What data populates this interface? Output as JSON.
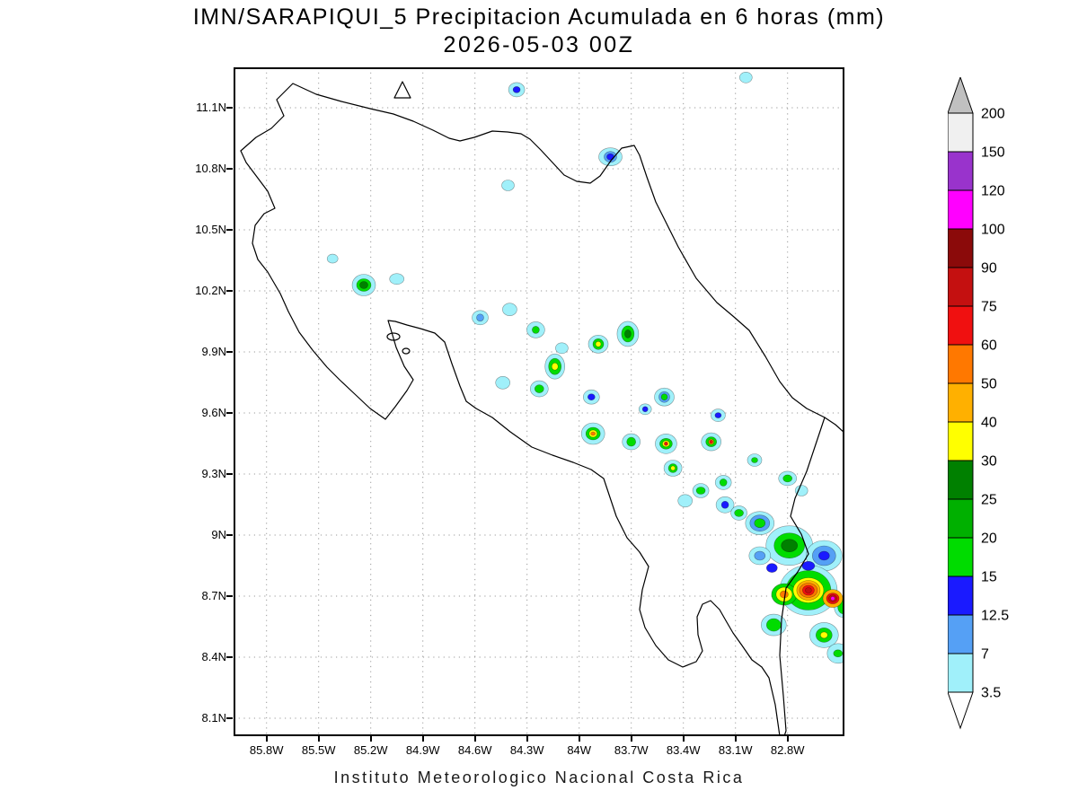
{
  "title": {
    "line1": "IMN/SARAPIQUI_5 Precipitacion Acumulada en 6 horas (mm)",
    "line2": "2026-05-03 00Z"
  },
  "footer": {
    "text": "Instituto Meteorologico Nacional Costa Rica"
  },
  "axes": {
    "y_ticks": [
      "11.1N",
      "10.8N",
      "10.5N",
      "10.2N",
      "9.9N",
      "9.6N",
      "9.3N",
      "9N",
      "8.7N",
      "8.4N",
      "8.1N"
    ],
    "x_ticks": [
      "85.8W",
      "85.5W",
      "85.2W",
      "84.9W",
      "84.6W",
      "84.3W",
      "84W",
      "83.7W",
      "83.4W",
      "83.1W",
      "82.8W"
    ]
  },
  "colorbar": {
    "labels_top_to_bottom": [
      "200",
      "150",
      "120",
      "100",
      "90",
      "75",
      "60",
      "50",
      "40",
      "30",
      "25",
      "20",
      "15",
      "12.5",
      "7",
      "3.5"
    ]
  },
  "chart_data": {
    "type": "heatmap",
    "title": "IMN/SARAPIQUI_5 Precipitacion Acumulada en 6 horas (mm)",
    "valid_time": "2026-05-03 00Z",
    "units": "mm",
    "region": "Costa Rica",
    "lon_w_range": [
      85.99,
      82.47
    ],
    "lat_n_range": [
      8.0,
      11.29
    ],
    "grid": "dotted",
    "legend_position": "right",
    "levels": [
      3.5,
      7,
      12.5,
      15,
      20,
      25,
      30,
      40,
      50,
      60,
      75,
      90,
      100,
      120,
      150,
      200
    ],
    "band_colors": [
      "#a0f0fa",
      "#55a0f5",
      "#1a1aff",
      "#00dc00",
      "#00b000",
      "#008000",
      "#ffff00",
      "#ffb000",
      "#ff7800",
      "#f01010",
      "#c41010",
      "#8b0a0a",
      "#ff00ff",
      "#9933cc",
      "#f0f0f0"
    ],
    "under_color": "#ffffff",
    "over_color": "#c0c0c0",
    "cells": [
      {
        "lon": 84.36,
        "lat": 11.18,
        "rings": [
          [
            3.5,
            9,
            8
          ],
          [
            12.5,
            4,
            3.5
          ]
        ]
      },
      {
        "lon": 83.04,
        "lat": 11.24,
        "rings": [
          [
            3.5,
            7,
            6
          ]
        ]
      },
      {
        "lon": 83.82,
        "lat": 10.85,
        "rings": [
          [
            3.5,
            13,
            10
          ],
          [
            7,
            7,
            6
          ],
          [
            12.5,
            4,
            3.5
          ]
        ]
      },
      {
        "lon": 84.41,
        "lat": 10.71,
        "rings": [
          [
            3.5,
            7,
            6
          ]
        ]
      },
      {
        "lon": 85.42,
        "lat": 10.35,
        "rings": [
          [
            3.5,
            6,
            5
          ]
        ]
      },
      {
        "lon": 85.24,
        "lat": 10.22,
        "rings": [
          [
            3.5,
            13,
            12
          ],
          [
            15,
            8,
            7
          ],
          [
            25,
            4.5,
            4
          ]
        ]
      },
      {
        "lon": 85.05,
        "lat": 10.25,
        "rings": [
          [
            3.5,
            8,
            6
          ]
        ]
      },
      {
        "lon": 84.57,
        "lat": 10.06,
        "rings": [
          [
            3.5,
            9,
            8
          ],
          [
            7,
            4,
            4
          ]
        ]
      },
      {
        "lon": 84.4,
        "lat": 10.1,
        "rings": [
          [
            3.5,
            8,
            7
          ]
        ]
      },
      {
        "lon": 84.25,
        "lat": 10.0,
        "rings": [
          [
            3.5,
            10,
            9
          ],
          [
            15,
            4,
            4
          ]
        ]
      },
      {
        "lon": 84.1,
        "lat": 9.91,
        "rings": [
          [
            3.5,
            7,
            6
          ]
        ]
      },
      {
        "lon": 83.72,
        "lat": 9.98,
        "rings": [
          [
            3.5,
            12,
            14
          ],
          [
            15,
            7,
            9
          ],
          [
            25,
            3.5,
            4.5
          ]
        ]
      },
      {
        "lon": 83.89,
        "lat": 9.93,
        "rings": [
          [
            3.5,
            11,
            10
          ],
          [
            15,
            6,
            6
          ],
          [
            30,
            3,
            3
          ]
        ]
      },
      {
        "lon": 84.14,
        "lat": 9.82,
        "rings": [
          [
            3.5,
            11,
            14
          ],
          [
            15,
            7,
            9
          ],
          [
            30,
            3.5,
            4
          ]
        ]
      },
      {
        "lon": 84.23,
        "lat": 9.71,
        "rings": [
          [
            3.5,
            10,
            9
          ],
          [
            15,
            5,
            4.5
          ]
        ]
      },
      {
        "lon": 84.44,
        "lat": 9.74,
        "rings": [
          [
            3.5,
            8,
            7
          ]
        ]
      },
      {
        "lon": 83.93,
        "lat": 9.67,
        "rings": [
          [
            3.5,
            9,
            8
          ],
          [
            12.5,
            4,
            3.5
          ]
        ]
      },
      {
        "lon": 83.51,
        "lat": 9.67,
        "rings": [
          [
            3.5,
            11,
            10
          ],
          [
            7,
            6,
            6
          ],
          [
            15,
            3.5,
            3.5
          ]
        ]
      },
      {
        "lon": 83.62,
        "lat": 9.61,
        "rings": [
          [
            3.5,
            7,
            6
          ],
          [
            12.5,
            3,
            3
          ]
        ]
      },
      {
        "lon": 83.92,
        "lat": 9.49,
        "rings": [
          [
            3.5,
            13,
            12
          ],
          [
            15,
            8,
            7
          ],
          [
            30,
            4.5,
            4
          ],
          [
            50,
            2.5,
            2
          ]
        ]
      },
      {
        "lon": 83.7,
        "lat": 9.45,
        "rings": [
          [
            3.5,
            10,
            9
          ],
          [
            15,
            5,
            5
          ]
        ]
      },
      {
        "lon": 83.5,
        "lat": 9.44,
        "rings": [
          [
            3.5,
            12,
            11
          ],
          [
            15,
            7,
            6
          ],
          [
            30,
            4,
            3.5
          ],
          [
            60,
            2,
            2
          ]
        ]
      },
      {
        "lon": 83.24,
        "lat": 9.45,
        "rings": [
          [
            3.5,
            11,
            10
          ],
          [
            15,
            6,
            5.5
          ],
          [
            40,
            3,
            3
          ],
          [
            60,
            1.8,
            1.8
          ]
        ]
      },
      {
        "lon": 83.17,
        "lat": 9.25,
        "rings": [
          [
            3.5,
            9,
            8
          ],
          [
            15,
            4,
            4
          ]
        ]
      },
      {
        "lon": 83.46,
        "lat": 9.32,
        "rings": [
          [
            3.5,
            10,
            9
          ],
          [
            15,
            5,
            5
          ],
          [
            30,
            2.5,
            2.5
          ]
        ]
      },
      {
        "lon": 83.3,
        "lat": 9.21,
        "rings": [
          [
            3.5,
            9,
            8
          ],
          [
            15,
            5,
            4
          ]
        ]
      },
      {
        "lon": 83.16,
        "lat": 9.14,
        "rings": [
          [
            3.5,
            10,
            9
          ],
          [
            12.5,
            4,
            4
          ]
        ]
      },
      {
        "lon": 83.08,
        "lat": 9.1,
        "rings": [
          [
            3.5,
            9,
            8
          ],
          [
            15,
            5,
            4
          ]
        ]
      },
      {
        "lon": 82.99,
        "lat": 9.36,
        "rings": [
          [
            3.5,
            8,
            7
          ],
          [
            15,
            3.5,
            3
          ]
        ]
      },
      {
        "lon": 82.8,
        "lat": 9.27,
        "rings": [
          [
            3.5,
            10,
            8
          ],
          [
            15,
            5,
            4
          ]
        ]
      },
      {
        "lon": 82.72,
        "lat": 9.21,
        "rings": [
          [
            3.5,
            7,
            6
          ]
        ]
      },
      {
        "lon": 82.96,
        "lat": 9.05,
        "rings": [
          [
            3.5,
            16,
            13
          ],
          [
            7,
            11,
            9
          ],
          [
            15,
            6,
            5
          ]
        ]
      },
      {
        "lon": 82.79,
        "lat": 8.94,
        "rings": [
          [
            3.5,
            26,
            22
          ],
          [
            15,
            17,
            14
          ],
          [
            25,
            9,
            7
          ]
        ]
      },
      {
        "lon": 82.59,
        "lat": 8.89,
        "rings": [
          [
            3.5,
            20,
            17
          ],
          [
            7,
            13,
            11
          ],
          [
            12.5,
            6,
            5
          ]
        ]
      },
      {
        "lon": 82.68,
        "lat": 8.72,
        "rings": [
          [
            3.5,
            32,
            28
          ],
          [
            15,
            25,
            22
          ],
          [
            30,
            17,
            14
          ],
          [
            40,
            13,
            11
          ],
          [
            50,
            10,
            8
          ],
          [
            60,
            6.5,
            5.5
          ],
          [
            75,
            3.5,
            3
          ]
        ]
      },
      {
        "lon": 82.82,
        "lat": 8.7,
        "rings": [
          [
            15,
            14,
            12
          ],
          [
            30,
            9,
            8
          ],
          [
            50,
            4.5,
            4
          ]
        ]
      },
      {
        "lon": 82.54,
        "lat": 8.68,
        "rings": [
          [
            40,
            11,
            10
          ],
          [
            60,
            7,
            6
          ],
          [
            75,
            4.5,
            4
          ],
          [
            100,
            2.2,
            2.2
          ]
        ]
      },
      {
        "lon": 82.88,
        "lat": 8.55,
        "rings": [
          [
            3.5,
            14,
            12
          ],
          [
            15,
            8,
            7
          ]
        ]
      },
      {
        "lon": 82.59,
        "lat": 8.5,
        "rings": [
          [
            3.5,
            16,
            14
          ],
          [
            15,
            9,
            8
          ],
          [
            30,
            4,
            3.5
          ]
        ]
      },
      {
        "lon": 82.51,
        "lat": 8.41,
        "rings": [
          [
            3.5,
            12,
            11
          ],
          [
            15,
            5,
            4
          ]
        ]
      },
      {
        "lon": 82.89,
        "lat": 8.83,
        "rings": [
          [
            12.5,
            6,
            5
          ]
        ]
      },
      {
        "lon": 82.96,
        "lat": 8.89,
        "rings": [
          [
            3.5,
            12,
            10
          ],
          [
            7,
            6,
            5
          ]
        ]
      },
      {
        "lon": 83.39,
        "lat": 9.16,
        "rings": [
          [
            3.5,
            8,
            7
          ]
        ]
      },
      {
        "lon": 83.2,
        "lat": 9.58,
        "rings": [
          [
            3.5,
            8,
            7
          ],
          [
            12.5,
            3.5,
            3
          ]
        ]
      },
      {
        "lon": 82.68,
        "lat": 8.84,
        "rings": [
          [
            12.5,
            7,
            5
          ]
        ]
      },
      {
        "lon": 82.48,
        "lat": 8.64,
        "rings": [
          [
            3.5,
            10,
            12
          ],
          [
            15,
            6,
            8
          ]
        ]
      }
    ]
  }
}
